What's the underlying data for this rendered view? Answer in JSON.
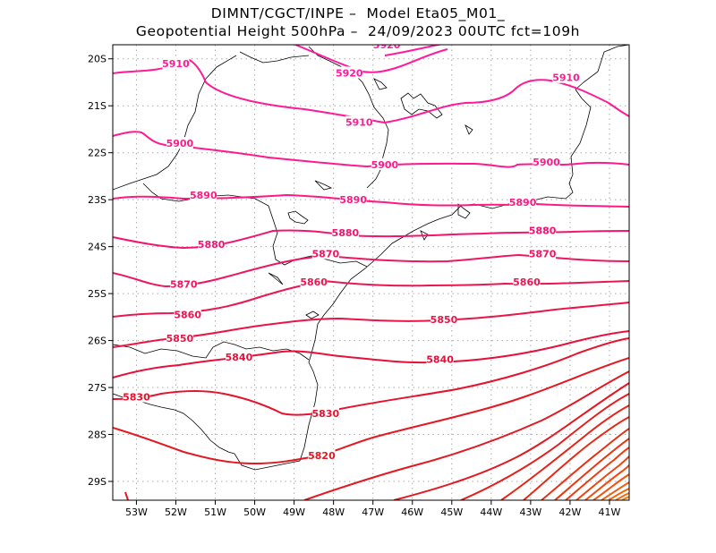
{
  "title": {
    "line1": "DIMNT/CGCT/INPE –  Model Eta05_M01_",
    "line2": "Geopotential Height 500hPa –  24/09/2023 00UTC fct=109h"
  },
  "map_data": {
    "lon_range": [
      -53.6,
      -40.5
    ],
    "lat_range": [
      -29.4,
      -19.7
    ],
    "lon_ticks": [
      {
        "value": -53,
        "label": "53W"
      },
      {
        "value": -52,
        "label": "52W"
      },
      {
        "value": -51,
        "label": "51W"
      },
      {
        "value": -50,
        "label": "50W"
      },
      {
        "value": -49,
        "label": "49W"
      },
      {
        "value": -48,
        "label": "48W"
      },
      {
        "value": -47,
        "label": "47W"
      },
      {
        "value": -46,
        "label": "46W"
      },
      {
        "value": -45,
        "label": "45W"
      },
      {
        "value": -44,
        "label": "44W"
      },
      {
        "value": -43,
        "label": "43W"
      },
      {
        "value": -42,
        "label": "42W"
      },
      {
        "value": -41,
        "label": "41W"
      }
    ],
    "lat_ticks": [
      {
        "value": -20,
        "label": "20S"
      },
      {
        "value": -21,
        "label": "21S"
      },
      {
        "value": -22,
        "label": "22S"
      },
      {
        "value": -23,
        "label": "23S"
      },
      {
        "value": -24,
        "label": "24S"
      },
      {
        "value": -25,
        "label": "25S"
      },
      {
        "value": -26,
        "label": "26S"
      },
      {
        "value": -27,
        "label": "27S"
      },
      {
        "value": -28,
        "label": "28S"
      },
      {
        "value": -29,
        "label": "29S"
      }
    ],
    "grid": "dotted",
    "contour_colors": {
      "5920": "#ff1aa0",
      "5910": "#ff1a96",
      "5900": "#ff1a8c",
      "5890": "#ff1a82",
      "5880": "#f2146e",
      "5870": "#ee1660",
      "5860": "#ea1650",
      "5850": "#ea1545",
      "5840": "#e8103a",
      "5830": "#e6122e",
      "5820": "#e31820",
      "low": "#ec4a10"
    },
    "contour_labels": [
      {
        "value": "5920",
        "lon": -46.65,
        "lat": -19.7
      },
      {
        "value": "5910",
        "lon": -52.0,
        "lat": -20.1
      },
      {
        "value": "5920",
        "lon": -47.6,
        "lat": -20.3
      },
      {
        "value": "5910",
        "lon": -42.1,
        "lat": -20.4
      },
      {
        "value": "5910",
        "lon": -47.35,
        "lat": -21.35
      },
      {
        "value": "5900",
        "lon": -51.9,
        "lat": -21.8
      },
      {
        "value": "5900",
        "lon": -46.7,
        "lat": -22.25
      },
      {
        "value": "5900",
        "lon": -42.6,
        "lat": -22.2
      },
      {
        "value": "5890",
        "lon": -51.3,
        "lat": -22.9
      },
      {
        "value": "5890",
        "lon": -47.5,
        "lat": -23.0
      },
      {
        "value": "5890",
        "lon": -43.2,
        "lat": -23.05
      },
      {
        "value": "5880",
        "lon": -51.1,
        "lat": -23.95
      },
      {
        "value": "5880",
        "lon": -47.7,
        "lat": -23.7
      },
      {
        "value": "5880",
        "lon": -42.7,
        "lat": -23.65
      },
      {
        "value": "5870",
        "lon": -48.2,
        "lat": -24.15
      },
      {
        "value": "5870",
        "lon": -42.7,
        "lat": -24.15
      },
      {
        "value": "5870",
        "lon": -51.8,
        "lat": -24.8
      },
      {
        "value": "5860",
        "lon": -48.5,
        "lat": -24.75
      },
      {
        "value": "5860",
        "lon": -43.1,
        "lat": -24.75
      },
      {
        "value": "5860",
        "lon": -51.7,
        "lat": -25.45
      },
      {
        "value": "5850",
        "lon": -45.2,
        "lat": -25.55
      },
      {
        "value": "5850",
        "lon": -51.9,
        "lat": -25.95
      },
      {
        "value": "5840",
        "lon": -50.4,
        "lat": -26.35
      },
      {
        "value": "5840",
        "lon": -45.3,
        "lat": -26.4
      },
      {
        "value": "5830",
        "lon": -53.0,
        "lat": -27.2
      },
      {
        "value": "5830",
        "lon": -48.2,
        "lat": -27.55
      },
      {
        "value": "5820",
        "lon": -48.3,
        "lat": -28.45
      }
    ]
  }
}
